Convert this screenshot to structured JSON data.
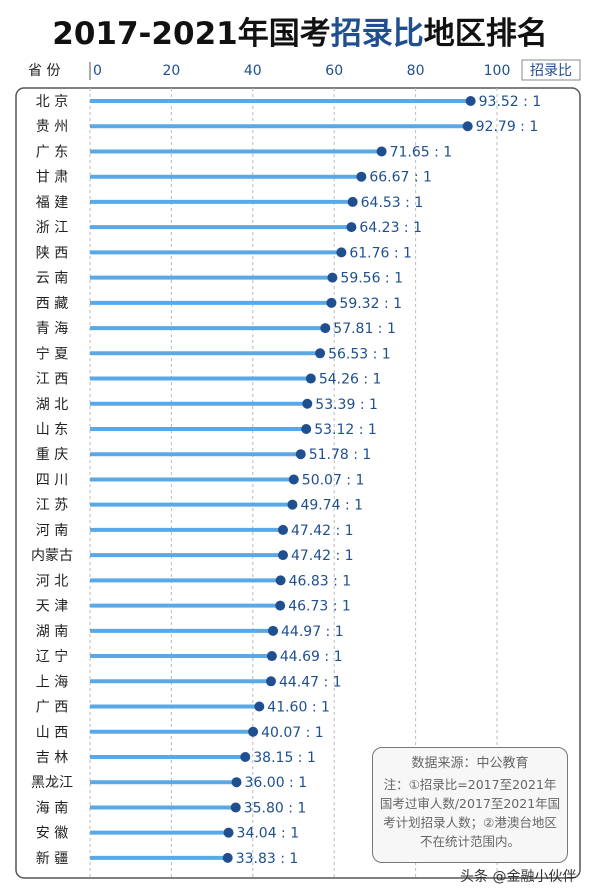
{
  "title": {
    "part1": "2017-2021年国考",
    "highlight": "招录比",
    "part2": "地区排名"
  },
  "chart_data": {
    "type": "bar",
    "orientation": "horizontal",
    "title": "2017-2021年国考招录比地区排名",
    "ylabel": "省 份",
    "xlabel": "招录比",
    "xlim": [
      0,
      100
    ],
    "xticks": [
      0,
      20,
      40,
      60,
      80,
      100
    ],
    "grid": true,
    "label_suffix": " : 1",
    "categories": [
      "北 京",
      "贵 州",
      "广 东",
      "甘 肃",
      "福 建",
      "浙 江",
      "陕 西",
      "云 南",
      "西 藏",
      "青 海",
      "宁 夏",
      "江 西",
      "湖 北",
      "山 东",
      "重 庆",
      "四 川",
      "江 苏",
      "河 南",
      "内蒙古",
      "河 北",
      "天 津",
      "湖 南",
      "辽 宁",
      "上 海",
      "广 西",
      "山 西",
      "吉 林",
      "黑龙江",
      "海 南",
      "安 徽",
      "新 疆"
    ],
    "values": [
      93.52,
      92.79,
      71.65,
      66.67,
      64.53,
      64.23,
      61.76,
      59.56,
      59.32,
      57.81,
      56.53,
      54.26,
      53.39,
      53.12,
      51.78,
      50.07,
      49.74,
      47.42,
      47.42,
      46.83,
      46.73,
      44.97,
      44.69,
      44.47,
      41.6,
      40.07,
      38.15,
      36.0,
      35.8,
      34.04,
      33.83
    ],
    "colors": {
      "bar": "#5aa9e6",
      "dot": "#1f4f8f",
      "label": "#1f4f8f",
      "tick": "#1f4f8f"
    }
  },
  "note": {
    "source": "数据来源：中公教育",
    "text": "注：①招录比=2017至2021年国考过审人数/2017至2021年国考计划招录人数；②港澳台地区不在统计范围内。"
  },
  "watermark": "头条 @金融小伙伴"
}
